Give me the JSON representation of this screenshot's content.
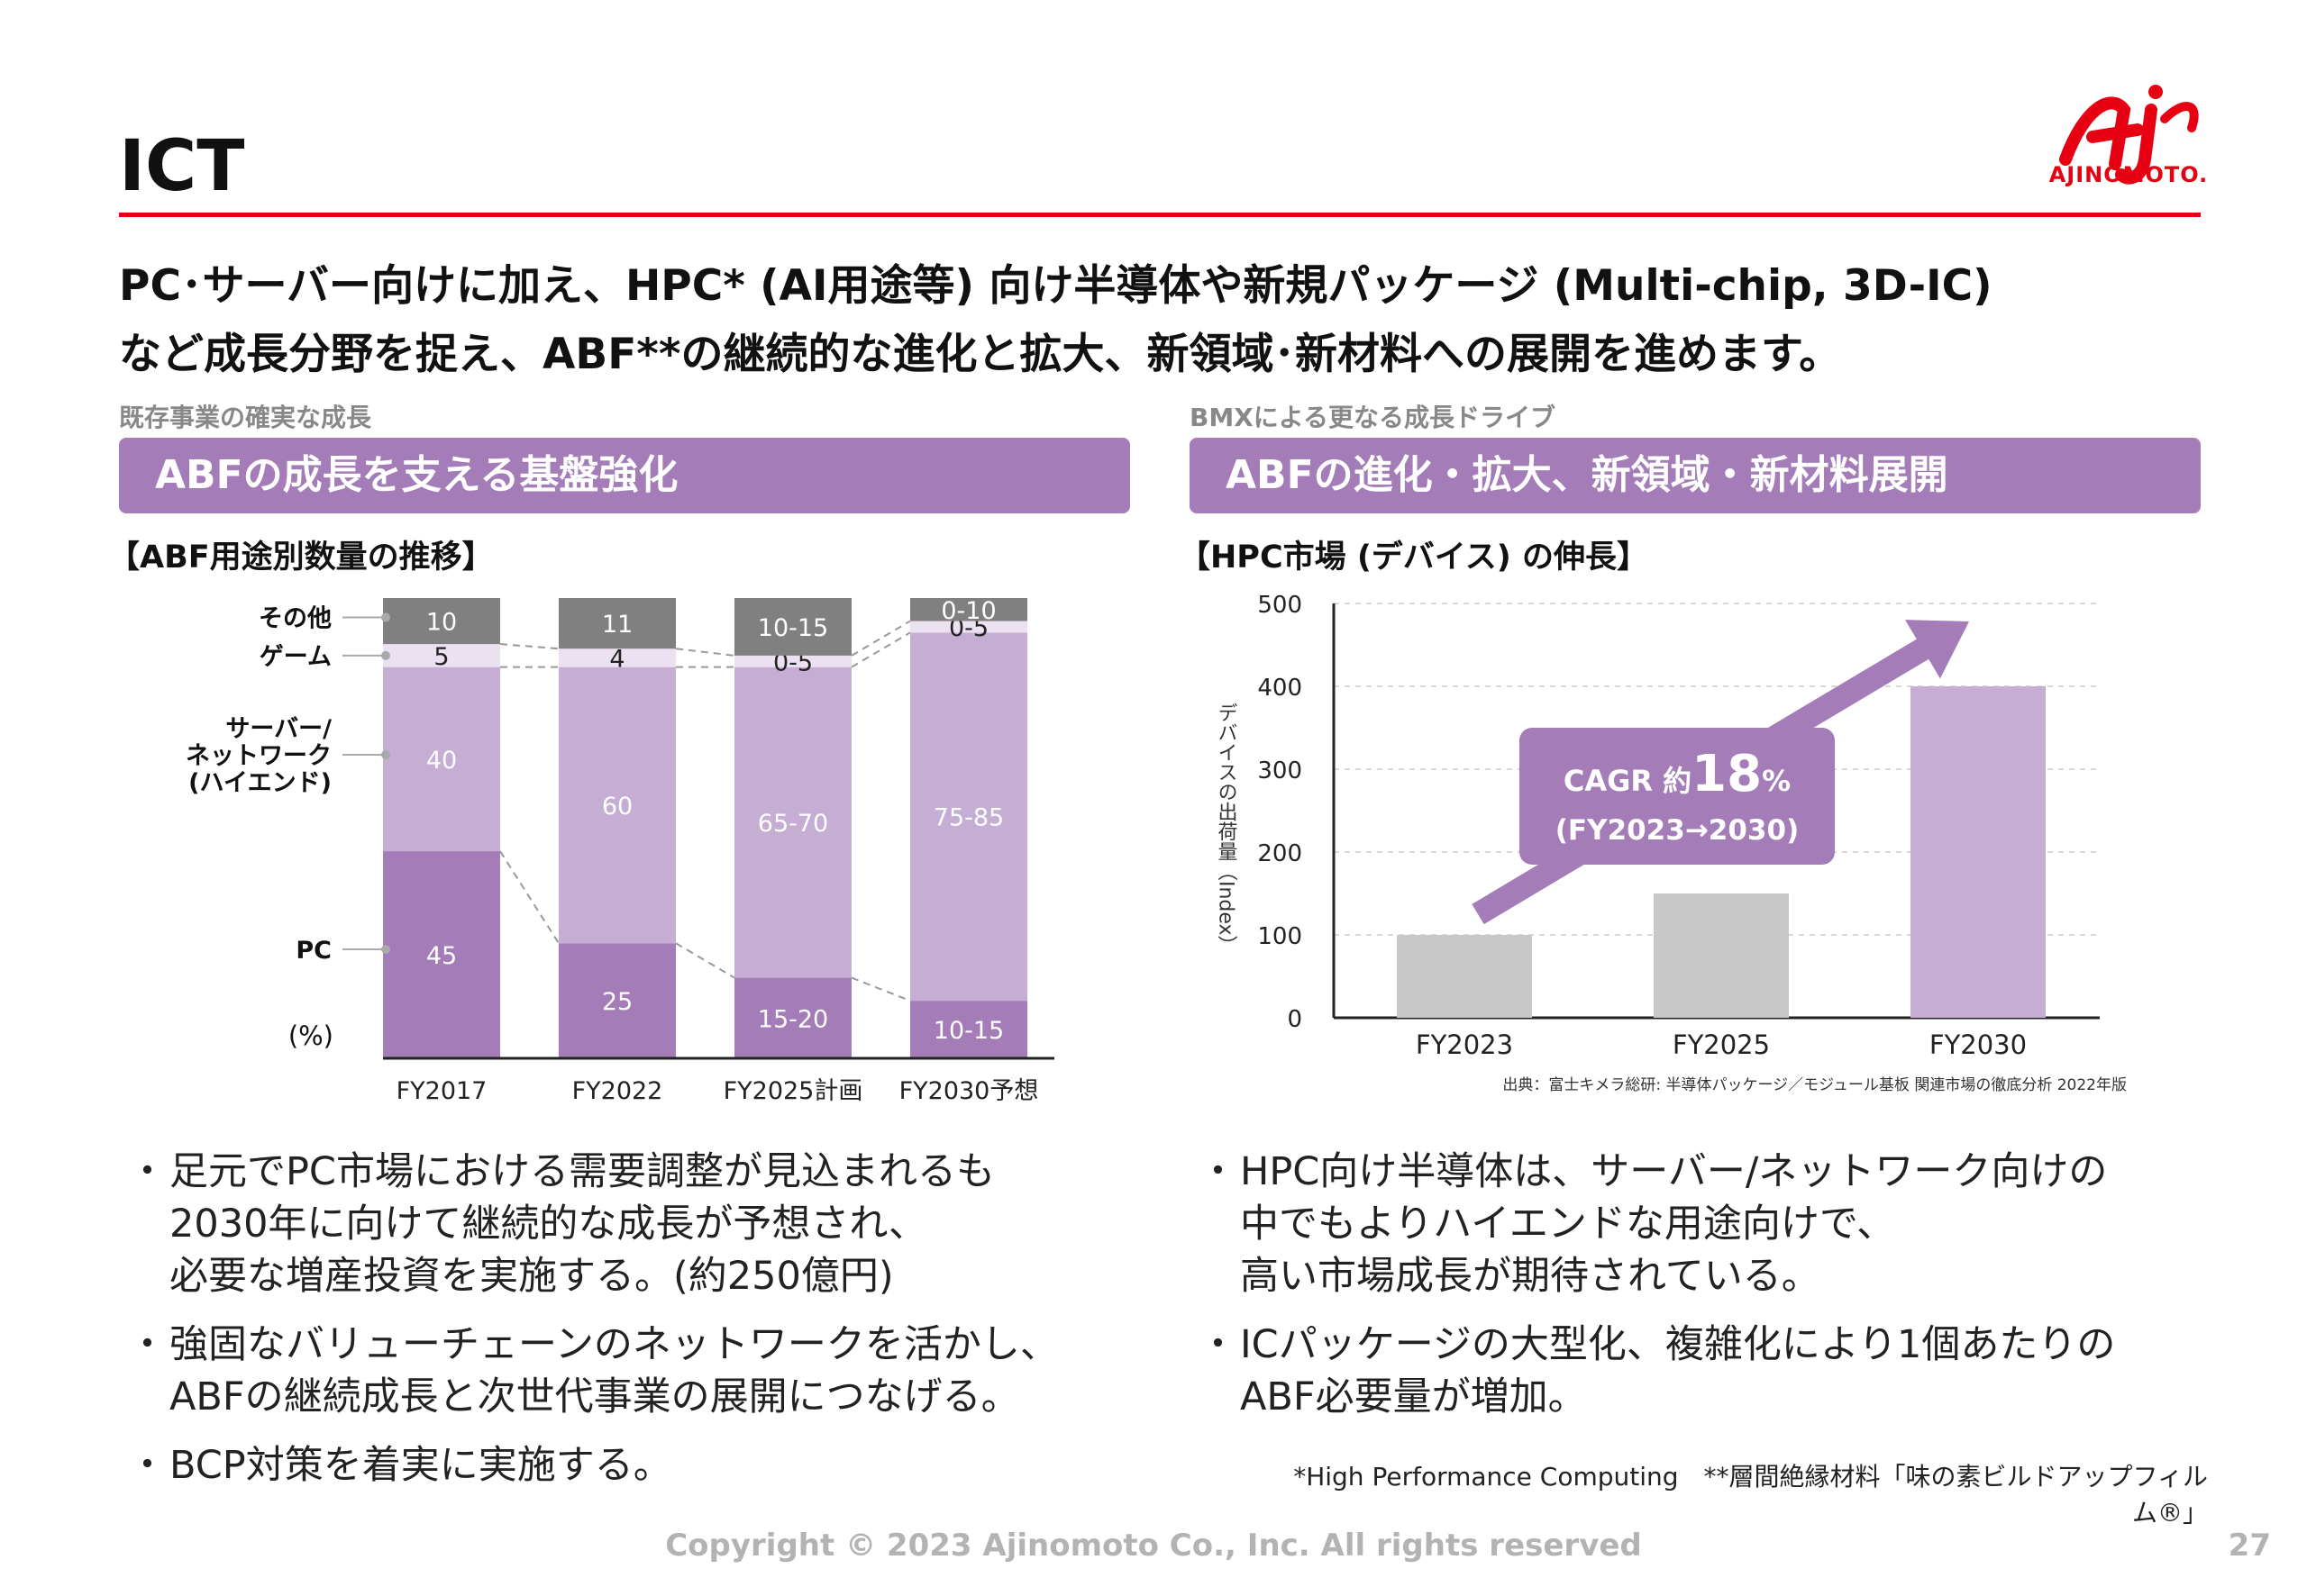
{
  "title": "ICT",
  "logo": {
    "text": "AJINOMOTO."
  },
  "headline": {
    "line1": "PC･サーバー向けに加え、HPC* (AI用途等) 向け半導体や新規パッケージ (Multi-chip, 3D-IC)",
    "line2": "など成長分野を捉え、ABF**の継続的な進化と拡大、新領域･新材料への展開を進めます。"
  },
  "left": {
    "sublabel": "既存事業の確実な成長",
    "banner": "ABFの成長を支える基盤強化",
    "chart_title": "【ABF用途別数量の推移】",
    "bullets": [
      {
        "dot": "・",
        "lines": [
          "足元でPC市場における需要調整が見込まれるも",
          "2030年に向けて継続的な成長が予想され、",
          "必要な増産投資を実施する。(約250億円)"
        ]
      },
      {
        "dot": "・",
        "lines": [
          "強固なバリューチェーンのネットワークを活かし、",
          "ABFの継続成長と次世代事業の展開につなげる。"
        ]
      },
      {
        "dot": "・",
        "lines": [
          "BCP対策を着実に実施する。"
        ]
      }
    ]
  },
  "right": {
    "sublabel": "BMXによる更なる成長ドライブ",
    "banner": "ABFの進化・拡大、新領域・新材料展開",
    "chart_title": "【HPC市場 (デバイス) の伸長】",
    "source": "出典：富士キメラ総研: 半導体パッケージ／モジュール基板 関連市場の徹底分析 2022年版",
    "bullets": [
      {
        "dot": "・",
        "lines": [
          "HPC向け半導体は、サーバー/ネットワーク向けの",
          "中でもよりハイエンドな用途向けで、",
          "高い市場成長が期待されている。"
        ]
      },
      {
        "dot": "・",
        "lines": [
          "ICパッケージの大型化、複雑化により1個あたりの",
          "ABF必要量が増加。"
        ]
      }
    ]
  },
  "footnote": "*High Performance Computing　**層間絶縁材料「味の素ビルドアップフィルム®」",
  "copyright": "Copyright © 2023 Ajinomoto Co., Inc. All rights reserved",
  "page_number": "27",
  "colors": {
    "accent_red": "#e60012",
    "banner_purple": "#a47db8",
    "pc": "#a47db8",
    "server": "#c5add4",
    "game": "#ebe1f0",
    "other": "#808080",
    "bar_gray": "#c8c8c8",
    "bar_purple": "#c5add4",
    "arrow": "#a47db8"
  },
  "chart_data": [
    {
      "type": "bar",
      "stacked": true,
      "title": "【ABF用途別数量の推移】",
      "unit_label": "(%)",
      "categories": [
        "FY2017",
        "FY2022",
        "FY2025計画",
        "FY2030予想"
      ],
      "series": [
        {
          "name": "PC",
          "values": [
            45,
            25,
            17.5,
            12.5
          ],
          "labels": [
            "45",
            "25",
            "15-20",
            "10-15"
          ]
        },
        {
          "name": "サーバー/ネットワーク(ハイエンド)",
          "values": [
            40,
            60,
            67.5,
            80
          ],
          "labels": [
            "40",
            "60",
            "65-70",
            "75-85"
          ]
        },
        {
          "name": "ゲーム",
          "values": [
            5,
            4,
            2.5,
            2.5
          ],
          "labels": [
            "5",
            "4",
            "0-5",
            "0-5"
          ]
        },
        {
          "name": "その他",
          "values": [
            10,
            11,
            12.5,
            5
          ],
          "labels": [
            "10",
            "11",
            "10-15",
            "0-10"
          ]
        }
      ],
      "legend_labels": [
        {
          "lines": [
            "その他"
          ]
        },
        {
          "lines": [
            "ゲーム"
          ]
        },
        {
          "lines": [
            "サーバー/",
            "ネットワーク",
            "(ハイエンド)"
          ]
        },
        {
          "lines": [
            "PC"
          ]
        }
      ],
      "legend_placement": "left"
    },
    {
      "type": "bar",
      "title": "【HPC市場 (デバイス) の伸長】",
      "categories": [
        "FY2023",
        "FY2025",
        "FY2030"
      ],
      "values": [
        100,
        150,
        400
      ],
      "ylabel": "デバイスの出荷量（Index）",
      "ylim": [
        0,
        500
      ],
      "yticks": [
        0,
        100,
        200,
        300,
        400,
        500
      ],
      "grid": true,
      "annotation": {
        "line1_prefix": "CAGR 約",
        "line1_value": "18",
        "line1_suffix": "%",
        "line2": "(FY2023→2030)"
      }
    }
  ]
}
